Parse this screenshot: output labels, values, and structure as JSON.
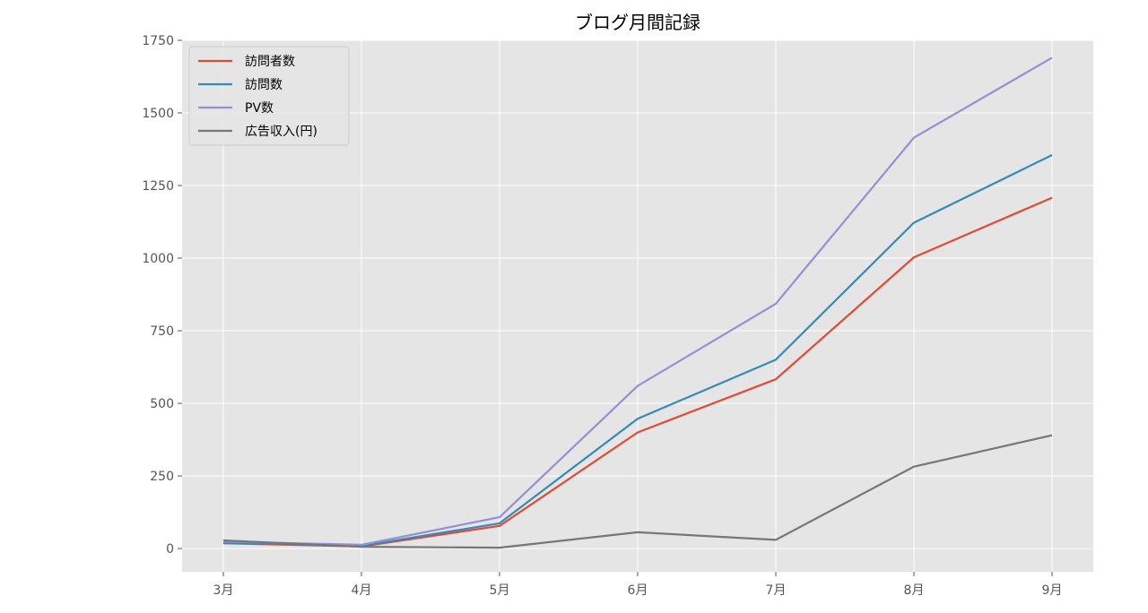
{
  "chart_data": {
    "type": "line",
    "title": "ブログ月間記録",
    "xlabel": "",
    "ylabel": "",
    "categories": [
      "3月",
      "4月",
      "5月",
      "6月",
      "7月",
      "8月",
      "9月"
    ],
    "ylim": [
      -80,
      1750
    ],
    "yticks": [
      0,
      250,
      500,
      750,
      1000,
      1250,
      1500,
      1750
    ],
    "ytick_labels": [
      "0",
      "250",
      "500",
      "750",
      "1000",
      "1250",
      "1500",
      "1750"
    ],
    "grid": true,
    "legend_position": "upper-left",
    "background": "#e5e5e5",
    "series": [
      {
        "name": "訪問者数",
        "color": "#e24a33",
        "values": [
          18,
          7,
          78,
          400,
          583,
          1003,
          1208
        ]
      },
      {
        "name": "訪問数",
        "color": "#348abd",
        "values": [
          20,
          9,
          87,
          447,
          650,
          1122,
          1355
        ]
      },
      {
        "name": "PV数",
        "color": "#988ed5",
        "values": [
          24,
          13,
          108,
          560,
          843,
          1415,
          1690
        ]
      },
      {
        "name": "広告収入(円)",
        "color": "#777777",
        "values": [
          28,
          6,
          3,
          56,
          30,
          282,
          390
        ]
      }
    ]
  }
}
